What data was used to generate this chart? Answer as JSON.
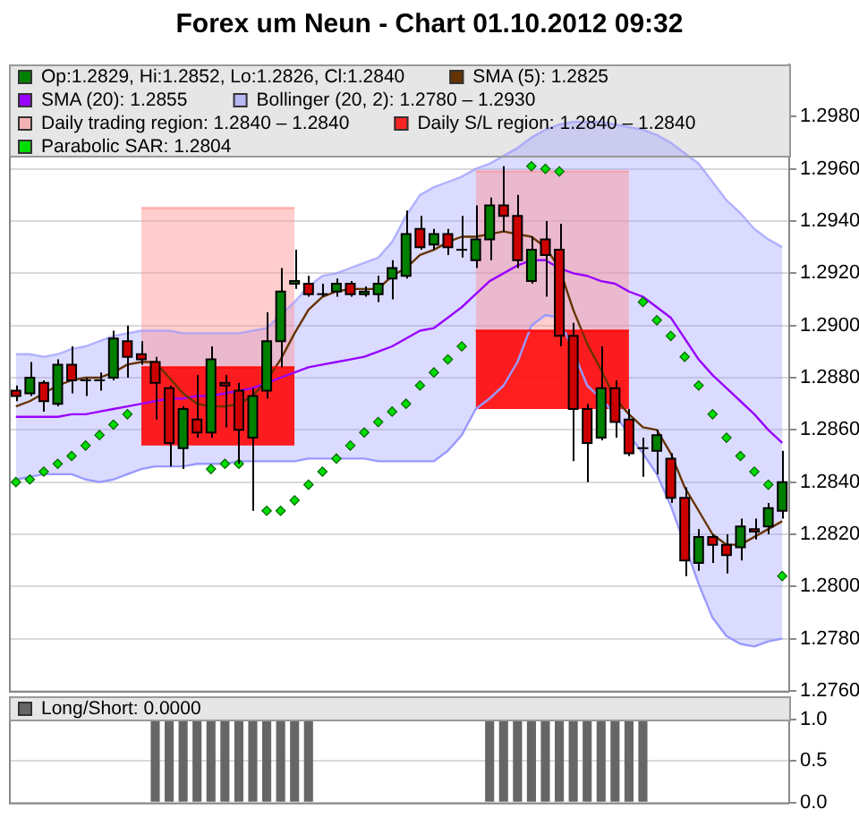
{
  "chart_data": [
    {
      "type": "candlestick",
      "title": "Forex um Neun - Chart 01.10.2012 09:32",
      "categories": [
        null,
        null,
        null,
        null,
        null,
        null,
        null,
        null,
        null,
        null,
        null,
        null,
        null,
        null,
        null,
        null,
        null,
        null,
        null,
        null,
        null,
        null,
        null,
        null,
        null,
        null,
        null,
        null,
        null,
        null,
        null,
        null,
        null,
        null,
        null,
        null,
        null,
        null,
        null,
        null,
        null,
        null,
        null,
        null,
        null,
        null,
        null,
        null,
        null,
        null,
        null,
        null,
        null,
        null,
        null,
        null
      ],
      "series": [
        {
          "name": "Op:1.2829, Hi:1.2852, Lo:1.2826, Cl:1.2840",
          "type": "candlestick",
          "color": "#008000",
          "colors": [
            "#cc0000",
            "#008000",
            "#cc0000",
            "#008000",
            "#cc0000",
            "#000000",
            "#000000",
            "#008000",
            "#cc0000",
            "#cc0000",
            "#cc0000",
            "#cc0000",
            "#008000",
            "#cc0000",
            "#008000",
            "#cc0000",
            "#cc0000",
            "#008000",
            "#008000",
            "#008000",
            "#008000",
            "#cc0000",
            "#000000",
            "#008000",
            "#cc0000",
            "#008000",
            "#008000",
            "#008000",
            "#008000",
            "#cc0000",
            "#008000",
            "#cc0000",
            "#000000",
            "#008000",
            "#008000",
            "#cc0000",
            "#cc0000",
            "#008000",
            "#cc0000",
            "#cc0000",
            "#cc0000",
            "#cc0000",
            "#008000",
            "#cc0000",
            "#cc0000",
            "#000000",
            "#008000",
            "#cc0000",
            "#cc0000",
            "#008000",
            "#cc0000",
            "#cc0000",
            "#008000",
            "#cc0000",
            "#008000",
            "#008000"
          ],
          "ohlc": [
            [
              1.2875,
              1.2877,
              1.2871,
              1.2873
            ],
            [
              1.2874,
              1.2886,
              1.2873,
              1.288
            ],
            [
              1.2878,
              1.2879,
              1.2867,
              1.2871
            ],
            [
              1.287,
              1.2887,
              1.2869,
              1.2885
            ],
            [
              1.2885,
              1.2892,
              1.2874,
              1.2879
            ],
            [
              1.2879,
              1.288,
              1.2873,
              1.2879
            ],
            [
              1.2879,
              1.2882,
              1.2875,
              1.2879
            ],
            [
              1.288,
              1.2898,
              1.2879,
              1.2895
            ],
            [
              1.2894,
              1.29,
              1.288,
              1.2888
            ],
            [
              1.2889,
              1.2894,
              1.2885,
              1.2887
            ],
            [
              1.2886,
              1.2888,
              1.2864,
              1.2878
            ],
            [
              1.2876,
              1.2877,
              1.2846,
              1.2855
            ],
            [
              1.2853,
              1.2869,
              1.2845,
              1.2868
            ],
            [
              1.2864,
              1.2881,
              1.2857,
              1.2859
            ],
            [
              1.2859,
              1.2892,
              1.2857,
              1.2887
            ],
            [
              1.2878,
              1.2881,
              1.2861,
              1.2877
            ],
            [
              1.2875,
              1.2878,
              1.2847,
              1.286
            ],
            [
              1.2857,
              1.2876,
              1.2829,
              1.2873
            ],
            [
              1.2875,
              1.2905,
              1.2872,
              1.2894
            ],
            [
              1.2894,
              1.2922,
              1.2884,
              1.2913
            ],
            [
              1.2916,
              1.2929,
              1.2914,
              1.2917
            ],
            [
              1.2916,
              1.2919,
              1.2911,
              1.2912
            ],
            [
              1.2912,
              1.2916,
              1.2911,
              1.2912
            ],
            [
              1.2913,
              1.2918,
              1.2911,
              1.2916
            ],
            [
              1.2916,
              1.2917,
              1.2911,
              1.2912
            ],
            [
              1.2912,
              1.2915,
              1.2911,
              1.2913
            ],
            [
              1.2912,
              1.2919,
              1.2909,
              1.2916
            ],
            [
              1.2918,
              1.2925,
              1.291,
              1.2922
            ],
            [
              1.2919,
              1.2944,
              1.2918,
              1.2935
            ],
            [
              1.2937,
              1.2942,
              1.2929,
              1.293
            ],
            [
              1.2931,
              1.2937,
              1.2929,
              1.2935
            ],
            [
              1.2935,
              1.2937,
              1.2927,
              1.293
            ],
            [
              1.2929,
              1.2942,
              1.2926,
              1.2929
            ],
            [
              1.2925,
              1.2946,
              1.2922,
              1.2933
            ],
            [
              1.2933,
              1.2949,
              1.2925,
              1.2946
            ],
            [
              1.2946,
              1.2961,
              1.2936,
              1.2942
            ],
            [
              1.2942,
              1.295,
              1.2922,
              1.2925
            ],
            [
              1.2917,
              1.2934,
              1.2916,
              1.2929
            ],
            [
              1.2933,
              1.294,
              1.2911,
              1.2927
            ],
            [
              1.2929,
              1.2939,
              1.2892,
              1.2896
            ],
            [
              1.2896,
              1.2901,
              1.2848,
              1.2868
            ],
            [
              1.2868,
              1.287,
              1.284,
              1.2855
            ],
            [
              1.2857,
              1.2892,
              1.2856,
              1.2876
            ],
            [
              1.2876,
              1.2879,
              1.2857,
              1.2863
            ],
            [
              1.2864,
              1.2868,
              1.285,
              1.2851
            ],
            [
              1.2853,
              1.2857,
              1.2842,
              1.2853
            ],
            [
              1.2852,
              1.286,
              1.2843,
              1.2858
            ],
            [
              1.2849,
              1.2851,
              1.2832,
              1.2834
            ],
            [
              1.2834,
              1.2838,
              1.2804,
              1.281
            ],
            [
              1.2809,
              1.2822,
              1.2806,
              1.2819
            ],
            [
              1.2819,
              1.282,
              1.2809,
              1.2816
            ],
            [
              1.2816,
              1.282,
              1.2805,
              1.2812
            ],
            [
              1.2815,
              1.2826,
              1.281,
              1.2823
            ],
            [
              1.2822,
              1.2826,
              1.2818,
              1.2821
            ],
            [
              1.2823,
              1.2832,
              1.282,
              1.283
            ],
            [
              1.2829,
              1.2852,
              1.2826,
              1.284
            ]
          ]
        },
        {
          "name": "SMA (5): 1.2825",
          "type": "line",
          "color": "#663300",
          "marker": "none",
          "values": [
            1.2869,
            1.2871,
            1.2874,
            1.2877,
            1.2879,
            1.288,
            1.288,
            1.2882,
            1.2885,
            1.2886,
            1.2886,
            1.288,
            1.2874,
            1.287,
            1.2869,
            1.2869,
            1.287,
            1.2873,
            1.2879,
            1.2887,
            1.2897,
            1.2906,
            1.2911,
            1.2913,
            1.2914,
            1.2914,
            1.2914,
            1.2919,
            1.2922,
            1.2927,
            1.2929,
            1.2932,
            1.2934,
            1.2934,
            1.2935,
            1.2936,
            1.2935,
            1.2934,
            1.293,
            1.2922,
            1.2906,
            1.2893,
            1.2883,
            1.2872,
            1.2866,
            1.2861,
            1.286,
            1.2851,
            1.2838,
            1.2829,
            1.282,
            1.2816,
            1.2816,
            1.2819,
            1.2822,
            1.2825
          ]
        },
        {
          "name": "SMA (20): 1.2855",
          "type": "line",
          "color": "#9900ff",
          "marker": "none",
          "values": [
            1.2865,
            1.2865,
            1.2865,
            1.2865,
            1.2866,
            1.2866,
            1.2867,
            1.2868,
            1.2869,
            1.287,
            1.2871,
            1.2872,
            1.2872,
            1.2873,
            1.2873,
            1.2874,
            1.2875,
            1.2876,
            1.2878,
            1.288,
            1.2882,
            1.2884,
            1.2885,
            1.2886,
            1.2887,
            1.2888,
            1.289,
            1.2892,
            1.2895,
            1.2898,
            1.2899,
            1.2903,
            1.2907,
            1.2912,
            1.2917,
            1.292,
            1.2923,
            1.2925,
            1.2925,
            1.2922,
            1.292,
            1.2919,
            1.2917,
            1.2916,
            1.2913,
            1.2911,
            1.2907,
            1.2903,
            1.2895,
            1.2887,
            1.2881,
            1.2876,
            1.2871,
            1.2866,
            1.286,
            1.2855
          ]
        },
        {
          "name": "Bollinger (20, 2): 1.2780 – 1.2930",
          "type": "line",
          "color": "#9999ff",
          "marker": "none",
          "upper": [
            1.2889,
            1.2889,
            1.2888,
            1.2889,
            1.2891,
            1.2892,
            1.2894,
            1.2896,
            1.2897,
            1.2898,
            1.2898,
            1.2898,
            1.2897,
            1.2897,
            1.2897,
            1.2897,
            1.2897,
            1.2898,
            1.2899,
            1.2904,
            1.2909,
            1.2915,
            1.2919,
            1.292,
            1.2922,
            1.2924,
            1.2926,
            1.2932,
            1.2942,
            1.295,
            1.2953,
            1.2955,
            1.2957,
            1.296,
            1.2962,
            1.2965,
            1.2968,
            1.2972,
            1.2975,
            1.2977,
            1.2978,
            1.2978,
            1.2978,
            1.2977,
            1.2976,
            1.2975,
            1.2973,
            1.297,
            1.2966,
            1.2962,
            1.2955,
            1.2948,
            1.2943,
            1.2937,
            1.2933,
            1.293
          ],
          "values": [
            1.2889,
            1.2889,
            1.2888,
            1.2889,
            1.2891,
            1.2892,
            1.2894,
            1.2896,
            1.2897,
            1.2898,
            1.2898,
            1.2898,
            1.2897,
            1.2897,
            1.2897,
            1.2897,
            1.2897,
            1.2898,
            1.2899,
            1.2904,
            1.2909,
            1.2915,
            1.2919,
            1.292,
            1.2922,
            1.2924,
            1.2926,
            1.2932,
            1.2942,
            1.295,
            1.2953,
            1.2955,
            1.2957,
            1.296,
            1.2962,
            1.2965,
            1.2968,
            1.2972,
            1.2975,
            1.2977,
            1.2978,
            1.2978,
            1.2978,
            1.2977,
            1.2976,
            1.2975,
            1.2973,
            1.297,
            1.2966,
            1.2962,
            1.2955,
            1.2948,
            1.2943,
            1.2937,
            1.2933,
            1.293
          ],
          "lower": [
            1.2841,
            1.2842,
            1.2843,
            1.2843,
            1.2843,
            1.2841,
            1.284,
            1.2841,
            1.2843,
            1.2845,
            1.2846,
            1.2846,
            1.2846,
            1.2847,
            1.2847,
            1.2847,
            1.2848,
            1.2848,
            1.2848,
            1.2848,
            1.2848,
            1.2849,
            1.2849,
            1.2849,
            1.2849,
            1.2849,
            1.2848,
            1.2848,
            1.2848,
            1.2848,
            1.2848,
            1.2852,
            1.2858,
            1.2868,
            1.2872,
            1.2877,
            1.2886,
            1.29,
            1.2904,
            1.2903,
            1.289,
            1.2877,
            1.2872,
            1.2866,
            1.2858,
            1.2851,
            1.2843,
            1.2831,
            1.2817,
            1.2801,
            1.2788,
            1.2781,
            1.2778,
            1.2777,
            1.2779,
            1.278
          ]
        },
        {
          "type": "line",
          "color": "#9999ff",
          "marker": "none",
          "values": [
            1.2841,
            1.2842,
            1.2843,
            1.2843,
            1.2843,
            1.2841,
            1.284,
            1.2841,
            1.2843,
            1.2845,
            1.2846,
            1.2846,
            1.2846,
            1.2847,
            1.2847,
            1.2847,
            1.2848,
            1.2848,
            1.2848,
            1.2848,
            1.2848,
            1.2849,
            1.2849,
            1.2849,
            1.2849,
            1.2849,
            1.2848,
            1.2848,
            1.2848,
            1.2848,
            1.2848,
            1.2852,
            1.2858,
            1.2868,
            1.2872,
            1.2877,
            1.2886,
            1.29,
            1.2904,
            1.2903,
            null,
            1.2877,
            1.2872,
            1.2866,
            1.2858,
            1.2851,
            1.2843,
            1.2831,
            null,
            1.2801,
            1.2788,
            1.2781,
            1.2778,
            1.2777,
            1.2779,
            1.278
          ]
        },
        {
          "name": "Daily trading region: 1.2840 – 1.2840",
          "type": "line",
          "color": "#ff9090",
          "marker": "none",
          "values": [
            null,
            null,
            null,
            null,
            null,
            null,
            null,
            null,
            null,
            1.2945,
            1.2945,
            1.2945,
            1.2945,
            1.2945,
            1.2945,
            1.2945,
            1.2945,
            1.2945,
            1.2945,
            1.2945,
            1.2945,
            null,
            null,
            null,
            null,
            null,
            null,
            null,
            null,
            null,
            null,
            null,
            null,
            1.2959,
            1.2959,
            1.2959,
            1.2959,
            1.2959,
            1.2959,
            1.2959,
            1.2959,
            1.2959,
            1.2959,
            1.2959,
            1.2959,
            null,
            null,
            null,
            null,
            null,
            null,
            null,
            null,
            null,
            null,
            null
          ],
          "upper": [
            null,
            null,
            null,
            null,
            null,
            null,
            null,
            null,
            null,
            1.2945,
            1.2945,
            1.2945,
            1.2945,
            1.2945,
            1.2945,
            1.2945,
            1.2945,
            1.2945,
            1.2945,
            1.2945,
            1.2945,
            null,
            null,
            null,
            null,
            null,
            null,
            null,
            null,
            null,
            null,
            null,
            null,
            1.2959,
            1.2959,
            1.2959,
            1.2959,
            1.2959,
            1.2959,
            1.2959,
            1.2959,
            1.2959,
            1.2959,
            1.2959,
            1.2959,
            null,
            null,
            null,
            null,
            null,
            null,
            null,
            null,
            null,
            null,
            null
          ],
          "lower": [
            null,
            null,
            null,
            null,
            null,
            null,
            null,
            null,
            null,
            1.2854,
            1.2854,
            1.2854,
            1.2854,
            1.2854,
            1.2854,
            1.2854,
            1.2854,
            1.2854,
            1.2854,
            1.2854,
            1.2854,
            null,
            null,
            null,
            null,
            null,
            null,
            null,
            null,
            null,
            null,
            null,
            null,
            1.2868,
            1.2868,
            1.2868,
            1.2868,
            1.2868,
            1.2868,
            1.2868,
            1.2868,
            1.2868,
            1.2868,
            1.2868,
            1.2868,
            null,
            null,
            null,
            null,
            null,
            null,
            null,
            null,
            null,
            null,
            null
          ]
        },
        {
          "name": "Daily S/L region: 1.2840 – 1.2840",
          "type": "line",
          "color": "#ff0000",
          "marker": "none",
          "values": [
            null,
            null,
            null,
            null,
            null,
            null,
            null,
            null,
            null,
            1.2884,
            1.2884,
            1.2884,
            1.2884,
            1.2884,
            1.2884,
            1.2884,
            1.2884,
            1.2884,
            1.2884,
            1.2884,
            1.2884,
            null,
            null,
            null,
            null,
            null,
            null,
            null,
            null,
            null,
            null,
            null,
            null,
            1.2898,
            1.2898,
            1.2898,
            1.2898,
            1.2898,
            1.2898,
            1.2898,
            1.2898,
            1.2898,
            1.2898,
            1.2898,
            1.2898,
            null,
            null,
            null,
            null,
            null,
            null,
            null,
            null,
            null,
            null,
            null
          ],
          "upper": [
            null,
            null,
            null,
            null,
            null,
            null,
            null,
            null,
            null,
            1.2884,
            1.2884,
            1.2884,
            1.2884,
            1.2884,
            1.2884,
            1.2884,
            1.2884,
            1.2884,
            1.2884,
            1.2884,
            1.2884,
            null,
            null,
            null,
            null,
            null,
            null,
            null,
            null,
            null,
            null,
            null,
            null,
            1.2898,
            1.2898,
            1.2898,
            1.2898,
            1.2898,
            1.2898,
            1.2898,
            1.2898,
            1.2898,
            1.2898,
            1.2898,
            1.2898,
            null,
            null,
            null,
            null,
            null,
            null,
            null,
            null,
            null,
            null,
            null
          ],
          "lower": [
            null,
            null,
            null,
            null,
            null,
            null,
            null,
            null,
            null,
            1.2854,
            1.2854,
            1.2854,
            1.2854,
            1.2854,
            1.2854,
            1.2854,
            1.2854,
            1.2854,
            1.2854,
            1.2854,
            1.2854,
            null,
            null,
            null,
            null,
            null,
            null,
            null,
            null,
            null,
            null,
            null,
            null,
            1.2868,
            1.2868,
            1.2868,
            1.2868,
            1.2868,
            1.2868,
            1.2868,
            1.2868,
            1.2868,
            1.2868,
            1.2868,
            1.2868,
            null,
            null,
            null,
            null,
            null,
            null,
            null,
            null,
            null,
            null,
            null
          ]
        },
        {
          "name": "Parabolic SAR: 1.2804",
          "type": "scatter",
          "color": "#00dd00",
          "marker": "diamond",
          "values": [
            1.284,
            1.2841,
            1.2844,
            1.2847,
            1.285,
            1.2854,
            1.2858,
            1.2862,
            1.2866,
            null,
            null,
            null,
            null,
            null,
            1.2845,
            1.2847,
            1.2847,
            null,
            1.2829,
            1.2829,
            1.2833,
            1.2839,
            1.2844,
            1.2849,
            1.2854,
            1.2859,
            1.2863,
            1.2867,
            1.287,
            1.2877,
            1.2882,
            1.2887,
            1.2892,
            null,
            null,
            null,
            null,
            1.2961,
            1.296,
            1.2959,
            null,
            null,
            null,
            null,
            null,
            1.2909,
            1.2902,
            1.2896,
            1.2888,
            1.2877,
            1.2866,
            1.2857,
            1.285,
            1.2844,
            1.2839,
            1.2804
          ]
        }
      ],
      "ylim": [
        1.276,
        1.3
      ],
      "yticks": [
        {
          "value": 1.276,
          "label": "1.2760"
        },
        {
          "value": 1.278,
          "label": "1.2780"
        },
        {
          "value": 1.28,
          "label": "1.2800"
        },
        {
          "value": 1.282,
          "label": "1.2820"
        },
        {
          "value": 1.284,
          "label": "1.2840"
        },
        {
          "value": 1.286,
          "label": "1.2860"
        },
        {
          "value": 1.288,
          "label": "1.2880"
        },
        {
          "value": 1.29,
          "label": "1.2900"
        },
        {
          "value": 1.292,
          "label": "1.2920"
        },
        {
          "value": 1.294,
          "label": "1.2940"
        },
        {
          "value": 1.296,
          "label": "1.2960"
        },
        {
          "value": 1.298,
          "label": "1.2980"
        }
      ],
      "grid": "y",
      "legend": "top",
      "tick_labels": "y"
    },
    {
      "type": "bar",
      "categories": [
        null,
        null,
        null,
        null,
        null,
        null,
        null,
        null,
        null,
        null,
        null,
        null,
        null,
        null,
        null,
        null,
        null,
        null,
        null,
        null,
        null,
        null,
        null,
        null,
        null,
        null,
        null,
        null,
        null,
        null,
        null,
        null,
        null,
        null,
        null,
        null,
        null,
        null,
        null,
        null,
        null,
        null,
        null,
        null,
        null,
        null,
        null,
        null,
        null,
        null,
        null,
        null,
        null,
        null,
        null,
        null
      ],
      "series": [
        {
          "name": "Long/Short: 0.0000",
          "color": "#666666",
          "values": [
            0,
            0,
            0,
            0,
            0,
            0,
            0,
            0,
            0,
            0,
            1,
            1,
            1,
            1,
            1,
            1,
            1,
            1,
            1,
            1,
            1,
            1,
            0,
            0,
            0,
            0,
            0,
            0,
            0,
            0,
            0,
            0,
            0,
            0,
            1,
            1,
            1,
            1,
            1,
            1,
            1,
            1,
            1,
            1,
            1,
            1,
            0,
            0,
            0,
            0,
            0,
            0,
            0,
            0,
            0,
            0
          ]
        }
      ],
      "ylim": [
        0,
        1
      ],
      "yticks": [
        {
          "value": 0,
          "label": "0.0"
        },
        {
          "value": 0.5,
          "label": "0.5"
        },
        {
          "value": 1,
          "label": "1.0"
        }
      ],
      "grid": "y",
      "legend": "top",
      "tick_labels": "y"
    }
  ]
}
